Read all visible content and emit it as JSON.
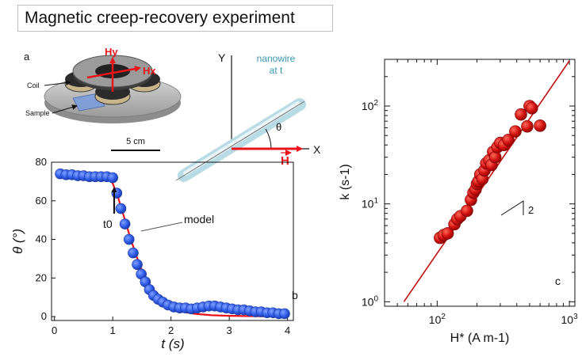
{
  "title": "Magnetic creep-recovery experiment",
  "setup_panel": {
    "panel_label": "a",
    "hy_label": "Hy",
    "hx_label": "Hx",
    "coil_label": "Coil",
    "sample_label": "Sample",
    "scale_label": "5 cm"
  },
  "schematic": {
    "y_axis": "Y",
    "x_axis": "X",
    "wire_label_line1": "nanowire",
    "wire_label_line2": "at t",
    "angle_label": "θ",
    "field_label": "H"
  },
  "colors": {
    "red": "#e8141a",
    "blue": "#2e59e6",
    "dark_red": "#bf0d0d",
    "teal": "#3a95b0"
  },
  "chart_data": [
    {
      "type": "scatter",
      "panel_label": "b",
      "xlabel": "t (s)",
      "ylabel": "θ (°)",
      "xlim": [
        -0.05,
        4.1
      ],
      "ylim": [
        -2,
        80
      ],
      "xticks": [
        0,
        1,
        2,
        3,
        4
      ],
      "yticks": [
        0,
        20,
        40,
        60,
        80
      ],
      "annotations": {
        "t0": "t0",
        "model": "model"
      },
      "series": [
        {
          "marker": "circle",
          "x": [
            0.1,
            0.2,
            0.3,
            0.4,
            0.5,
            0.6,
            0.7,
            0.8,
            0.9,
            1.0,
            1.07,
            1.14,
            1.21,
            1.28,
            1.35,
            1.42,
            1.49,
            1.56,
            1.63,
            1.7,
            1.78,
            1.86,
            1.95,
            2.05,
            2.15,
            2.25,
            2.35,
            2.45,
            2.55,
            2.65,
            2.75,
            2.85,
            2.95,
            3.05,
            3.15,
            3.25,
            3.35,
            3.45,
            3.55,
            3.65,
            3.75,
            3.85,
            3.95
          ],
          "y": [
            74,
            73.5,
            73.5,
            73,
            73,
            72.5,
            72.5,
            72.5,
            72.5,
            72,
            64,
            56,
            48,
            40,
            33,
            27,
            22,
            18,
            14,
            11,
            9,
            7.5,
            6,
            5,
            4.5,
            4.5,
            4,
            4.5,
            5,
            5.5,
            5.5,
            5,
            4.5,
            4,
            3.5,
            3.5,
            3,
            2.5,
            2.5,
            2,
            2,
            1.5,
            1.5
          ]
        },
        {
          "marker": "line",
          "x": [
            0.9,
            1.0,
            1.1,
            1.2,
            1.3,
            1.4,
            1.5,
            1.6,
            1.7,
            1.8,
            1.9,
            2.0,
            2.2,
            2.4,
            2.7,
            3.0,
            3.5,
            3.9
          ],
          "y": [
            72.5,
            69,
            61,
            51,
            41,
            32,
            24,
            17.5,
            12.5,
            9,
            6.5,
            4.5,
            2.5,
            1.5,
            0.7,
            0.4,
            0.2,
            0.1
          ]
        }
      ]
    },
    {
      "type": "scatter",
      "panel_label": "c",
      "xlabel": "H* (A m-1)",
      "ylabel": "k (s-1)",
      "xscale": "log",
      "yscale": "log",
      "xlim": [
        40,
        1100
      ],
      "ylim": [
        0.9,
        300
      ],
      "xticks": [
        "10^2",
        "10^3"
      ],
      "yticks": [
        "10^0",
        "10^1",
        "10^2"
      ],
      "slope_label": "2",
      "series": [
        {
          "marker": "circle",
          "x": [
            105,
            112,
            120,
            135,
            142,
            150,
            168,
            180,
            188,
            195,
            200,
            205,
            212,
            220,
            228,
            235,
            248,
            258,
            265,
            275,
            285,
            300,
            320,
            345,
            390,
            430,
            480,
            500,
            520,
            600
          ],
          "y": [
            4.5,
            4.8,
            5.0,
            6.2,
            7.0,
            7.5,
            8.5,
            11.0,
            13.0,
            14.0,
            16.0,
            17.0,
            20.0,
            18.0,
            22.0,
            26.0,
            28.0,
            25.0,
            34.0,
            30.0,
            38.0,
            42.0,
            40.0,
            45.0,
            55.0,
            82.0,
            62.0,
            100.0,
            95.0,
            63.0
          ]
        },
        {
          "marker": "line",
          "x": [
            56,
            1000
          ],
          "y": [
            1.0,
            290
          ]
        }
      ]
    }
  ]
}
